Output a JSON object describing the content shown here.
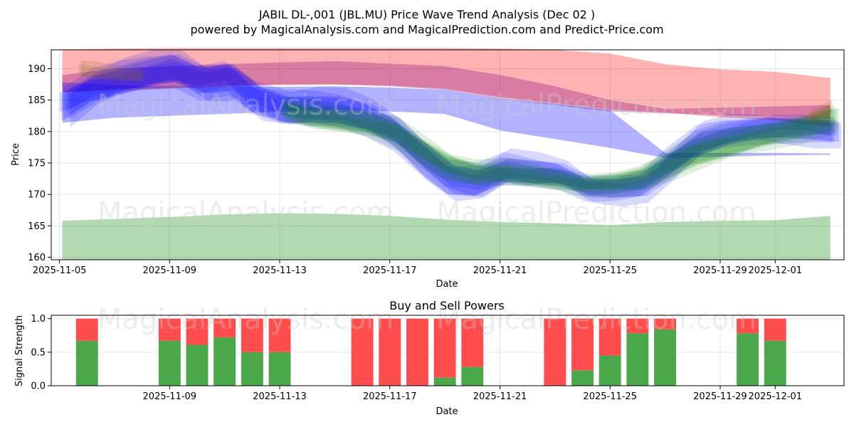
{
  "title_line1": "JABIL DL-,001 (JBL.MU) Price Wave Trend Analysis (Dec 02 )",
  "title_line2": "powered by MagicalAnalysis.com and MagicalPrediction.com and Predict-Price.com",
  "watermarks": [
    "MagicalAnalysis.com",
    "MagicalPrediction.com"
  ],
  "colors": {
    "red": "#ff0000",
    "blue": "#0000ff",
    "purple": "#800080",
    "green": "#008000",
    "buy": "#4aa84a",
    "sell": "#ff4d4d"
  },
  "chart_data": [
    {
      "type": "area",
      "title": "",
      "xlabel": "Date",
      "ylabel": "Price",
      "ylim": [
        159.6,
        193
      ],
      "xlim_day_offsets": [
        -0.3,
        28.5
      ],
      "x_ticks": [
        "2025-11-05",
        "2025-11-09",
        "2025-11-13",
        "2025-11-17",
        "2025-11-21",
        "2025-11-25",
        "2025-11-29",
        "2025-12-01"
      ],
      "x_tick_day_offsets": [
        0,
        4,
        8,
        12,
        16,
        20,
        24,
        26
      ],
      "y_ticks": [
        160,
        165,
        170,
        175,
        180,
        185,
        190
      ],
      "grid": true,
      "series": [
        {
          "name": "red band",
          "color": "#ff0000",
          "opacity": 0.3,
          "x": [
            0.1,
            2,
            4,
            6,
            8,
            10,
            12,
            14,
            16,
            18,
            20,
            22,
            24,
            26,
            28
          ],
          "upper": [
            193,
            193.2,
            193.3,
            193.3,
            193.3,
            193.3,
            193.3,
            193.3,
            193.2,
            193,
            192.4,
            190.7,
            189.9,
            189.5,
            188.5
          ],
          "lower": [
            186.2,
            186.5,
            186.8,
            187.2,
            187.4,
            187.5,
            187.3,
            186.8,
            185.5,
            184.5,
            183.5,
            183,
            182.3,
            181.8,
            180.8
          ]
        },
        {
          "name": "purple band",
          "color": "#800080",
          "opacity": 0.3,
          "x": [
            0.1,
            2,
            4,
            6,
            8,
            10,
            12,
            14,
            16,
            18,
            20,
            22,
            24,
            26,
            28
          ],
          "upper": [
            189,
            190,
            190.4,
            190.7,
            191,
            191.2,
            190.8,
            190.4,
            189,
            187.2,
            185,
            183.6,
            183.8,
            184,
            184.2
          ],
          "lower": [
            186.3,
            186.8,
            187,
            187.3,
            187.5,
            187.5,
            187.2,
            186.6,
            185.2,
            184.2,
            183.2,
            182.9,
            182.6,
            182.4,
            182
          ]
        },
        {
          "name": "blue band",
          "color": "#0000ff",
          "opacity": 0.3,
          "x": [
            0.1,
            2,
            4,
            6,
            8,
            10,
            12,
            14,
            16,
            18,
            20,
            22,
            24,
            26,
            28
          ],
          "upper": [
            187.8,
            187.4,
            187.2,
            187.2,
            187.1,
            187.2,
            187,
            186.6,
            185.2,
            184.4,
            183.4,
            176.6,
            176.6,
            176.6,
            176.5
          ],
          "lower": [
            181.4,
            182.2,
            182.5,
            182.8,
            183.2,
            183.5,
            183.2,
            182.8,
            180.2,
            178.8,
            177.4,
            175.8,
            176,
            176.2,
            176.3
          ]
        },
        {
          "name": "green band",
          "color": "#008000",
          "opacity": 0.3,
          "x": [
            0.1,
            2,
            4,
            6,
            8,
            10,
            12,
            14,
            16,
            18,
            20,
            22,
            24,
            26,
            28
          ],
          "upper": [
            165.8,
            166.1,
            166.4,
            166.8,
            167,
            166.9,
            166.6,
            166,
            165.6,
            165.4,
            165.1,
            165.6,
            165.8,
            165.9,
            166.6
          ],
          "lower": [
            159.6,
            159.6,
            159.6,
            159.6,
            159.6,
            159.6,
            159.6,
            159.6,
            159.6,
            159.6,
            159.6,
            159.6,
            159.6,
            159.6,
            159.6
          ]
        }
      ],
      "wave_series": [
        {
          "name": "blue waves",
          "color": "#0000ff",
          "opacity": 0.15,
          "x": [
            0,
            1,
            2,
            3,
            4,
            5,
            6,
            7,
            8,
            9,
            10,
            11,
            12,
            13,
            14,
            15,
            16,
            17,
            18,
            19,
            20,
            21,
            22,
            23,
            24,
            25,
            26,
            27,
            28
          ],
          "center": [
            184.6,
            187.5,
            188.5,
            189,
            189.4,
            187.5,
            188.6,
            185.6,
            184.2,
            183.8,
            183,
            181.5,
            179.5,
            176,
            173,
            172.5,
            174.2,
            173.2,
            172.5,
            170.6,
            171,
            172,
            175.5,
            178.5,
            179.3,
            179.7,
            180.1,
            180.5,
            180.6
          ],
          "half_width": [
            2.6,
            2.6,
            2.6,
            2.6,
            2.6,
            2.6,
            2.6,
            2.6,
            2.6,
            2.6,
            2.6,
            2.6,
            2.6,
            2.8,
            2.8,
            2.6,
            2.4,
            2.2,
            2,
            1.8,
            1.8,
            2,
            2.4,
            2.4,
            2.2,
            2,
            2,
            2,
            2
          ],
          "layers": 6
        },
        {
          "name": "green waves",
          "color": "#008000",
          "opacity": 0.13,
          "x": [
            8,
            9,
            10,
            11,
            12,
            13,
            14,
            15,
            16,
            17,
            18,
            19,
            20,
            21,
            22,
            23,
            24,
            25,
            26,
            27,
            28
          ],
          "center": [
            183.8,
            183,
            182.3,
            181.2,
            179.5,
            176.5,
            174.2,
            173.6,
            174,
            173.3,
            172.2,
            171,
            171.2,
            172.4,
            175,
            177.2,
            178.2,
            178.8,
            179.3,
            180.2,
            182
          ],
          "half_width": [
            1.8,
            2,
            2,
            2,
            2.2,
            2.4,
            2.2,
            2,
            1.8,
            1.8,
            1.6,
            1.6,
            1.8,
            2,
            2.4,
            2.6,
            2.4,
            2.2,
            2,
            2,
            2.2
          ],
          "layers": 5
        },
        {
          "name": "brown waves",
          "color": "#8b6a2a",
          "opacity": 0.18,
          "x": [
            0.7,
            1.2,
            2,
            3
          ],
          "center": [
            189.8,
            189.6,
            189.3,
            189
          ],
          "half_width": [
            1.6,
            1.6,
            1.4,
            1.2
          ],
          "layers": 2
        },
        {
          "name": "brown end waves",
          "color": "#8b6a2a",
          "opacity": 0.2,
          "x": [
            27.2,
            27.6,
            28
          ],
          "center": [
            182.2,
            183,
            184
          ],
          "half_width": [
            1.2,
            1.2,
            1.2
          ],
          "layers": 2
        }
      ]
    },
    {
      "type": "bar",
      "title": "Buy and Sell Powers",
      "xlabel": "Date",
      "ylabel": "Signal Strength",
      "ylim": [
        0,
        1.05
      ],
      "xlim_day_offsets": [
        -0.3,
        28.5
      ],
      "x_ticks": [
        "2025-11-09",
        "2025-11-13",
        "2025-11-17",
        "2025-11-21",
        "2025-11-25",
        "2025-11-29",
        "2025-12-01"
      ],
      "x_tick_day_offsets": [
        4,
        8,
        12,
        16,
        20,
        24,
        26
      ],
      "y_ticks": [
        "0.0",
        "0.5",
        "1.0"
      ],
      "y_tick_values": [
        0,
        0.5,
        1
      ],
      "grid": true,
      "bar_day_offsets": [
        1,
        4,
        5,
        6,
        7,
        8,
        11,
        12,
        13,
        14,
        15,
        18,
        19,
        20,
        21,
        22,
        25,
        26
      ],
      "series": [
        {
          "name": "Buy",
          "color": "#4aa84a",
          "values": [
            0.67,
            0.67,
            0.61,
            0.72,
            0.5,
            0.5,
            0,
            0,
            0,
            0.12,
            0.28,
            0,
            0.23,
            0.45,
            0.78,
            0.84,
            0.78,
            0.67
          ]
        },
        {
          "name": "Sell",
          "color": "#ff4d4d",
          "values": [
            0.33,
            0.33,
            0.39,
            0.28,
            0.5,
            0.5,
            1,
            1,
            1,
            0.88,
            0.72,
            1,
            0.77,
            0.55,
            0.22,
            0.16,
            0.22,
            0.33
          ]
        }
      ]
    }
  ]
}
